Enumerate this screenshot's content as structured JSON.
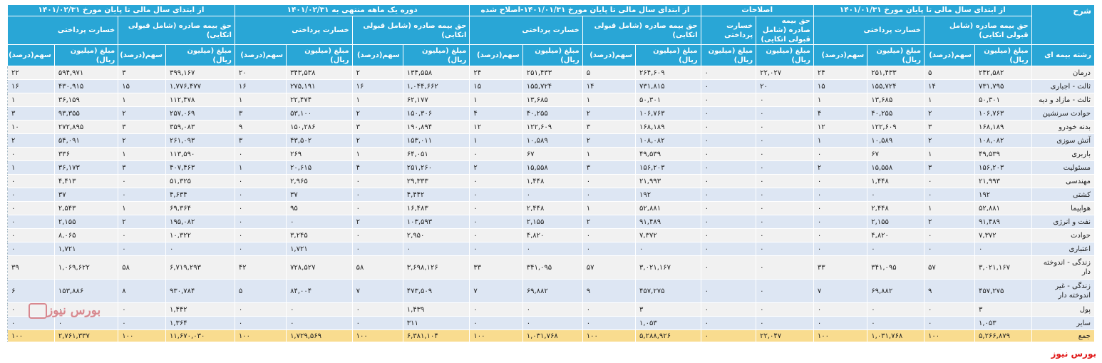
{
  "header": {
    "sharh": "شرح",
    "group1": "از ابتدای سال مالی تا پایان مورخ ۱۴۰۱/۰۱/۳۱",
    "group2": "اصلاحات",
    "group3": "از ابتدای سال مالی تا پایان مورخ ۱۴۰۱/۰۱/۳۱-اصلاح شده",
    "group4": "دوره یک ماهه منتهی به ۱۴۰۱/۰۲/۳۱",
    "group5": "از ابتدای سال مالی تا پایان مورخ ۱۴۰۱/۰۲/۳۱",
    "premium": "حق بیمه صادره (شامل قبولی اتکایی)",
    "premium_adj": "حق بیمه صادره (شامل قبولی اتکایی)",
    "loss": "خسارت پرداختی",
    "loss_adj": "خسارت پرداختی",
    "amount": "مبلغ (میلیون ریال)",
    "amount_adj": "مبلغ (میلیون ریال)",
    "share": "سهم(درصد)",
    "branch": "رشته بیمه ای"
  },
  "rows": [
    {
      "name": "درمان",
      "c": [
        "۲۴۲,۵۸۲",
        "۵",
        "۲۵۱,۴۳۳",
        "۲۴",
        "۲۲,۰۲۷",
        "۰",
        "۲۶۴,۶۰۹",
        "۵",
        "۲۵۱,۴۳۳",
        "۲۴",
        "۱۳۴,۵۵۸",
        "۲",
        "۳۴۳,۵۳۸",
        "۲۰",
        "۳۹۹,۱۶۷",
        "۳",
        "۵۹۴,۹۷۱",
        "۲۲"
      ]
    },
    {
      "name": "ثالث - اجباری",
      "c": [
        "۷۳۱,۷۹۵",
        "۱۴",
        "۱۵۵,۷۲۴",
        "۱۵",
        "۲۰",
        "۰",
        "۷۳۱,۸۱۵",
        "۱۴",
        "۱۵۵,۷۲۴",
        "۱۵",
        "۱,۰۴۴,۶۶۲",
        "۱۶",
        "۲۷۵,۱۹۱",
        "۱۶",
        "۱,۷۷۶,۴۷۷",
        "۱۵",
        "۴۳۰,۹۱۵",
        "۱۶"
      ]
    },
    {
      "name": "ثالث - مازاد و دیه",
      "c": [
        "۵۰,۳۰۱",
        "۱",
        "۱۳,۶۸۵",
        "۱",
        "۰",
        "۰",
        "۵۰,۳۰۱",
        "۱",
        "۱۳,۶۸۵",
        "۱",
        "۶۲,۱۷۷",
        "۱",
        "۲۲,۴۷۴",
        "۱",
        "۱۱۲,۴۷۸",
        "۱",
        "۳۶,۱۵۹",
        "۱"
      ]
    },
    {
      "name": "حوادث سرنشین",
      "c": [
        "۱۰۶,۷۶۳",
        "۲",
        "۴۰,۲۵۵",
        "۴",
        "۰",
        "۰",
        "۱۰۶,۷۶۳",
        "۲",
        "۴۰,۲۵۵",
        "۴",
        "۱۵۰,۳۰۶",
        "۲",
        "۵۳,۱۰۰",
        "۳",
        "۲۵۷,۰۶۹",
        "۲",
        "۹۳,۳۵۵",
        "۳"
      ]
    },
    {
      "name": "بدنه خودرو",
      "c": [
        "۱۶۸,۱۸۹",
        "۳",
        "۱۲۲,۶۰۹",
        "۱۲",
        "۰",
        "۰",
        "۱۶۸,۱۸۹",
        "۳",
        "۱۲۲,۶۰۹",
        "۱۲",
        "۱۹۰,۸۹۴",
        "۳",
        "۱۵۰,۲۸۶",
        "۹",
        "۳۵۹,۰۸۳",
        "۳",
        "۲۷۲,۸۹۵",
        "۱۰"
      ]
    },
    {
      "name": "آتش سوزی",
      "c": [
        "۱۰۸,۰۸۲",
        "۲",
        "۱۰,۵۸۹",
        "۱",
        "۰",
        "۰",
        "۱۰۸,۰۸۲",
        "۲",
        "۱۰,۵۸۹",
        "۱",
        "۱۵۳,۰۱۱",
        "۲",
        "۴۳,۵۰۲",
        "۳",
        "۲۶۱,۰۹۳",
        "۲",
        "۵۴,۰۹۱",
        "۲"
      ]
    },
    {
      "name": "باربری",
      "c": [
        "۴۹,۵۳۹",
        "۱",
        "۶۷",
        "۰",
        "۰",
        "۰",
        "۴۹,۵۳۹",
        "۱",
        "۶۷",
        "۰",
        "۶۴,۰۵۱",
        "۱",
        "۲۶۹",
        "۰",
        "۱۱۳,۵۹۰",
        "۱",
        "۳۳۶",
        "۰"
      ]
    },
    {
      "name": "مسئولیت",
      "c": [
        "۱۵۶,۲۰۳",
        "۳",
        "۱۵,۵۵۸",
        "۲",
        "۰",
        "۰",
        "۱۵۶,۲۰۳",
        "۳",
        "۱۵,۵۵۸",
        "۲",
        "۲۵۱,۲۶۰",
        "۴",
        "۲۰,۶۱۵",
        "۱",
        "۴۰۷,۴۶۳",
        "۳",
        "۳۶,۱۷۳",
        "۱"
      ]
    },
    {
      "name": "مهندسی",
      "c": [
        "۲۱,۹۹۳",
        "۰",
        "۱,۴۴۸",
        "۰",
        "۰",
        "۰",
        "۲۱,۹۹۳",
        "۰",
        "۱,۴۴۸",
        "۰",
        "۲۹,۳۳۳",
        "۰",
        "۲,۹۶۵",
        "۰",
        "۵۱,۳۲۵",
        "۰",
        "۴,۴۱۳",
        "۰"
      ]
    },
    {
      "name": "کشتی",
      "c": [
        "۱۹۲",
        "۰",
        "۰",
        "۰",
        "۰",
        "۰",
        "۱۹۲",
        "۰",
        "۰",
        "۰",
        "۴,۴۴۲",
        "۰",
        "۳۷",
        "۰",
        "۴,۶۳۴",
        "۰",
        "۳۷",
        "۰"
      ]
    },
    {
      "name": "هواپیما",
      "c": [
        "۵۲,۸۸۱",
        "۱",
        "۲,۴۴۸",
        "۰",
        "۰",
        "۰",
        "۵۲,۸۸۱",
        "۱",
        "۲,۴۴۸",
        "۰",
        "۱۶,۴۸۳",
        "۰",
        "۹۵",
        "۰",
        "۶۹,۳۶۴",
        "۱",
        "۲,۵۴۳",
        "۰"
      ]
    },
    {
      "name": "نفت و انرژی",
      "c": [
        "۹۱,۴۸۹",
        "۲",
        "۲,۱۵۵",
        "۰",
        "۰",
        "۰",
        "۹۱,۴۸۹",
        "۲",
        "۲,۱۵۵",
        "۰",
        "۱۰۳,۵۹۳",
        "۲",
        "۰",
        "۰",
        "۱۹۵,۰۸۲",
        "۲",
        "۲,۱۵۵",
        "۰"
      ]
    },
    {
      "name": "حوادث",
      "c": [
        "۷,۳۷۲",
        "۰",
        "۴,۸۲۰",
        "۰",
        "۰",
        "۰",
        "۷,۳۷۲",
        "۰",
        "۴,۸۲۰",
        "۰",
        "۲,۹۵۰",
        "۰",
        "۳,۲۴۵",
        "۰",
        "۱۰,۳۲۲",
        "۰",
        "۸,۰۶۵",
        "۰"
      ]
    },
    {
      "name": "اعتباری",
      "c": [
        "۰",
        "۰",
        "۰",
        "۰",
        "۰",
        "۰",
        "۰",
        "۰",
        "۰",
        "۰",
        "۰",
        "۰",
        "۱,۷۲۱",
        "۰",
        "۰",
        "۰",
        "۱,۷۲۱",
        "۰"
      ]
    },
    {
      "name": "زندگی - اندوخته دار",
      "c": [
        "۳,۰۲۱,۱۶۷",
        "۵۷",
        "۳۴۱,۰۹۵",
        "۳۳",
        "۰",
        "۰",
        "۳,۰۲۱,۱۶۷",
        "۵۷",
        "۳۴۱,۰۹۵",
        "۳۳",
        "۳,۶۹۸,۱۲۶",
        "۵۸",
        "۷۲۸,۵۲۷",
        "۴۲",
        "۶,۷۱۹,۲۹۳",
        "۵۸",
        "۱,۰۶۹,۶۲۲",
        "۳۹"
      ]
    },
    {
      "name": "زندگی - غیر اندوخته دار",
      "c": [
        "۴۵۷,۲۷۵",
        "۹",
        "۶۹,۸۸۲",
        "۷",
        "۰",
        "۰",
        "۴۵۷,۲۷۵",
        "۹",
        "۶۹,۸۸۲",
        "۷",
        "۴۷۳,۵۰۹",
        "۷",
        "۸۴,۰۰۴",
        "۵",
        "۹۳۰,۷۸۴",
        "۸",
        "۱۵۳,۸۸۶",
        "۶"
      ]
    },
    {
      "name": "پول",
      "c": [
        "۳",
        "۰",
        "۰",
        "۰",
        "۰",
        "۰",
        "۳",
        "۰",
        "۰",
        "۰",
        "۱,۴۳۹",
        "۰",
        "۰",
        "۰",
        "۱,۴۴۲",
        "۰",
        "۰",
        "۰"
      ]
    },
    {
      "name": "سایر",
      "c": [
        "۱,۰۵۳",
        "۰",
        "۰",
        "۰",
        "۰",
        "۰",
        "۱,۰۵۳",
        "۰",
        "۰",
        "۰",
        "۳۱۱",
        "۰",
        "۰",
        "۰",
        "۱,۳۶۴",
        "۰",
        "۰",
        "۰"
      ]
    }
  ],
  "total": {
    "name": "جمع",
    "c": [
      "۵,۲۶۶,۸۷۹",
      "۱۰۰",
      "۱,۰۳۱,۷۶۸",
      "۱۰۰",
      "۲۲,۰۴۷",
      "۰",
      "۵,۲۸۸,۹۲۶",
      "۱۰۰",
      "۱,۰۳۱,۷۶۸",
      "۱۰۰",
      "۶,۳۸۱,۱۰۴",
      "۱۰۰",
      "۱,۷۲۹,۵۶۹",
      "۱۰۰",
      "۱۱,۶۷۰,۰۳۰",
      "۱۰۰",
      "۲,۷۶۱,۳۳۷",
      "۱۰۰"
    ]
  },
  "watermark": "بورس نیوز",
  "source": "بورس نیوز"
}
